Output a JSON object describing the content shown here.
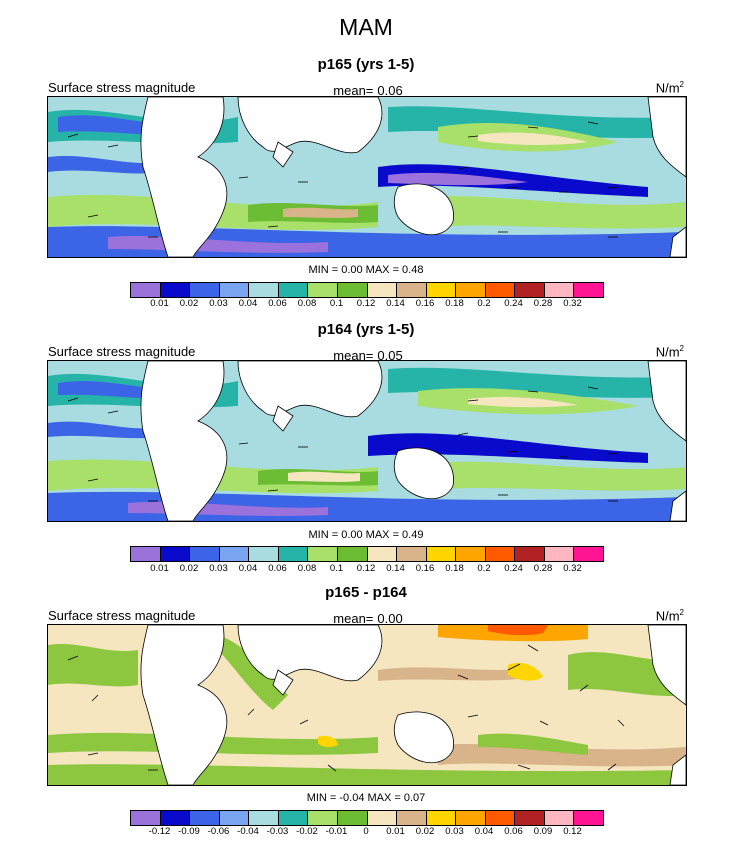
{
  "title": "MAM",
  "panels": [
    {
      "title": "p165 (yrs 1-5)",
      "variable": "Surface stress magnitude",
      "mean_label": "mean=",
      "mean_value": "0.06",
      "units": "N/m",
      "units_exp": "2",
      "minmax": "MIN =  0.00 MAX =  0.48"
    },
    {
      "title": "p164 (yrs 1-5)",
      "variable": "Surface stress magnitude",
      "mean_label": "mean=",
      "mean_value": "0.05",
      "units": "N/m",
      "units_exp": "2",
      "minmax": "MIN =  0.00 MAX =  0.49"
    },
    {
      "title": "p165 - p164",
      "variable": "Surface stress magnitude",
      "mean_label": "mean=",
      "mean_value": "0.00",
      "units": "N/m",
      "units_exp": "2",
      "minmax": "MIN = -0.04 MAX =  0.07"
    }
  ],
  "colorbar_abs": {
    "labels": [
      "0.01",
      "0.02",
      "0.03",
      "0.04",
      "0.06",
      "0.08",
      "0.1",
      "0.12",
      "0.14",
      "0.16",
      "0.18",
      "0.2",
      "0.24",
      "0.28",
      "0.32"
    ],
    "colors": [
      "#9b71dc",
      "#0a0acd",
      "#3b64e6",
      "#7aa5f0",
      "#a8dce0",
      "#27b4a8",
      "#a8e06a",
      "#6cbc34",
      "#f5e6c0",
      "#d9b48a",
      "#ffd500",
      "#ffa500",
      "#ff5a00",
      "#b22222",
      "#ffb6c1",
      "#ff1493"
    ]
  },
  "colorbar_diff": {
    "labels": [
      "-0.12",
      "-0.09",
      "-0.06",
      "-0.04",
      "-0.03",
      "-0.02",
      "-0.01",
      "0",
      "0.01",
      "0.02",
      "0.03",
      "0.04",
      "0.06",
      "0.09",
      "0.12"
    ],
    "colors": [
      "#9b71dc",
      "#0a0acd",
      "#3b64e6",
      "#7aa5f0",
      "#a8dce0",
      "#27b4a8",
      "#a8e06a",
      "#6cbc34",
      "#f5e6c0",
      "#d9b48a",
      "#ffd500",
      "#ffa500",
      "#ff5a00",
      "#b22222",
      "#ffb6c1",
      "#ff1493"
    ]
  },
  "colors": {
    "land": "#ffffff",
    "ocean_base_abs": "#a8dce0",
    "ocean_base_diff": "#f5e6c0",
    "diff_green": "#8dc63f",
    "diff_tan": "#d9b48a",
    "diff_orange": "#ff8c00"
  }
}
